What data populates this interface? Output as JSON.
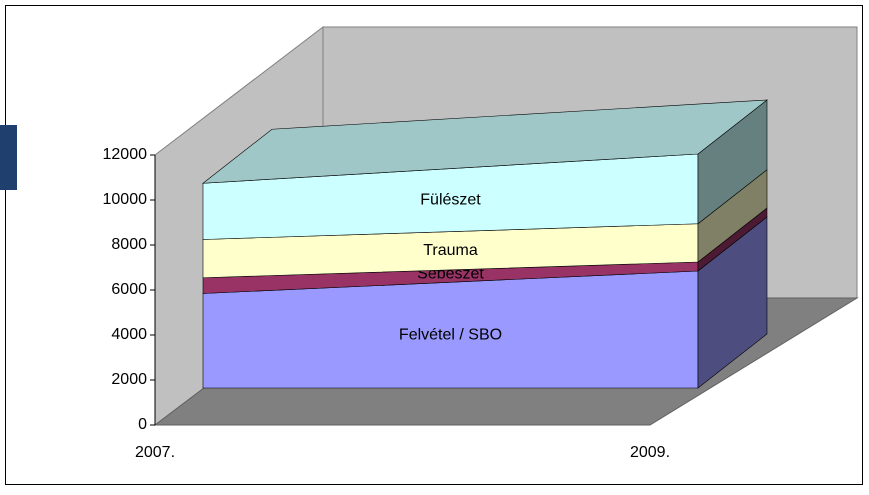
{
  "chart_data": {
    "type": "area3d",
    "categories": [
      "2007.",
      "2009."
    ],
    "series": [
      {
        "name": "Felvétel / SBO",
        "color": "#9999ff",
        "values": [
          4200,
          5200
        ]
      },
      {
        "name": "Sebészet",
        "color": "#993366",
        "values": [
          700,
          400
        ]
      },
      {
        "name": "Trauma",
        "color": "#ffffcc",
        "values": [
          1700,
          1700
        ]
      },
      {
        "name": "Fülészet",
        "color": "#ccffff",
        "values": [
          2500,
          3100
        ]
      }
    ],
    "ylim": [
      0,
      12000
    ],
    "yticks": [
      0,
      2000,
      4000,
      6000,
      8000,
      10000,
      12000
    ],
    "stacked": true
  }
}
